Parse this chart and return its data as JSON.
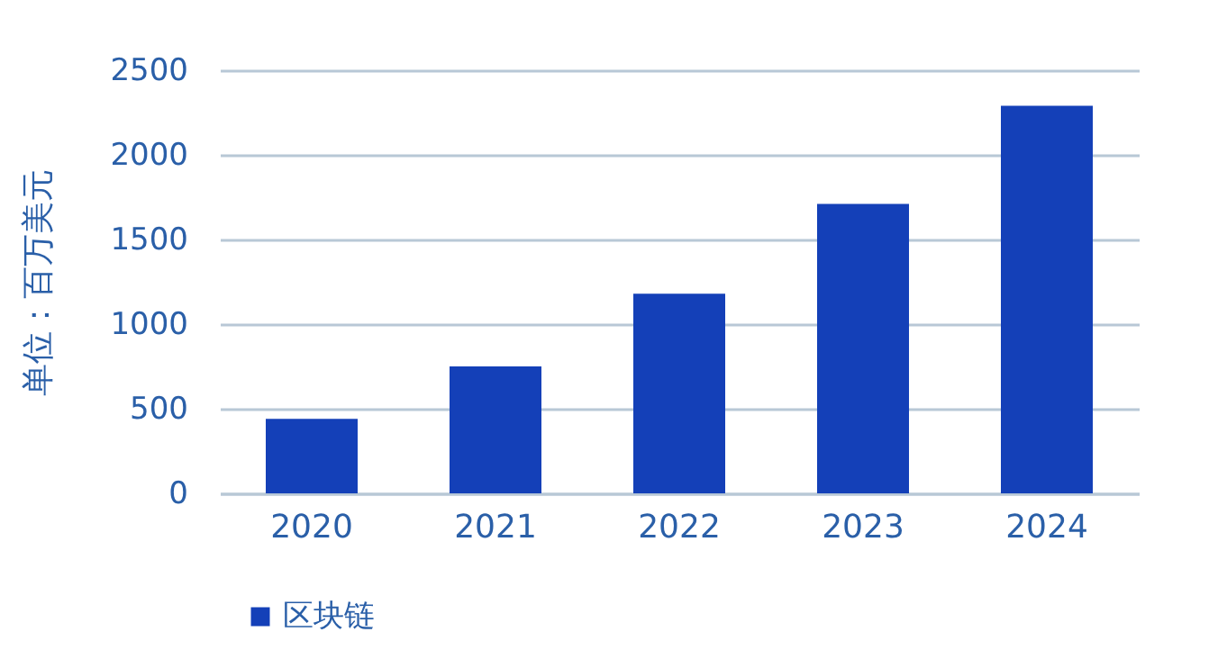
{
  "chart_data": {
    "type": "bar",
    "ylabel": "单位：百万美元",
    "categories": [
      "2020",
      "2021",
      "2022",
      "2023",
      "2024"
    ],
    "series": [
      {
        "name": "区块链",
        "color": "#1440b8",
        "values": [
          440,
          750,
          1180,
          1710,
          2290
        ]
      }
    ],
    "ylim": [
      0,
      2500
    ],
    "yticks": [
      0,
      500,
      1000,
      1500,
      2000,
      2500
    ],
    "grid": "y",
    "legend": "bottom"
  }
}
